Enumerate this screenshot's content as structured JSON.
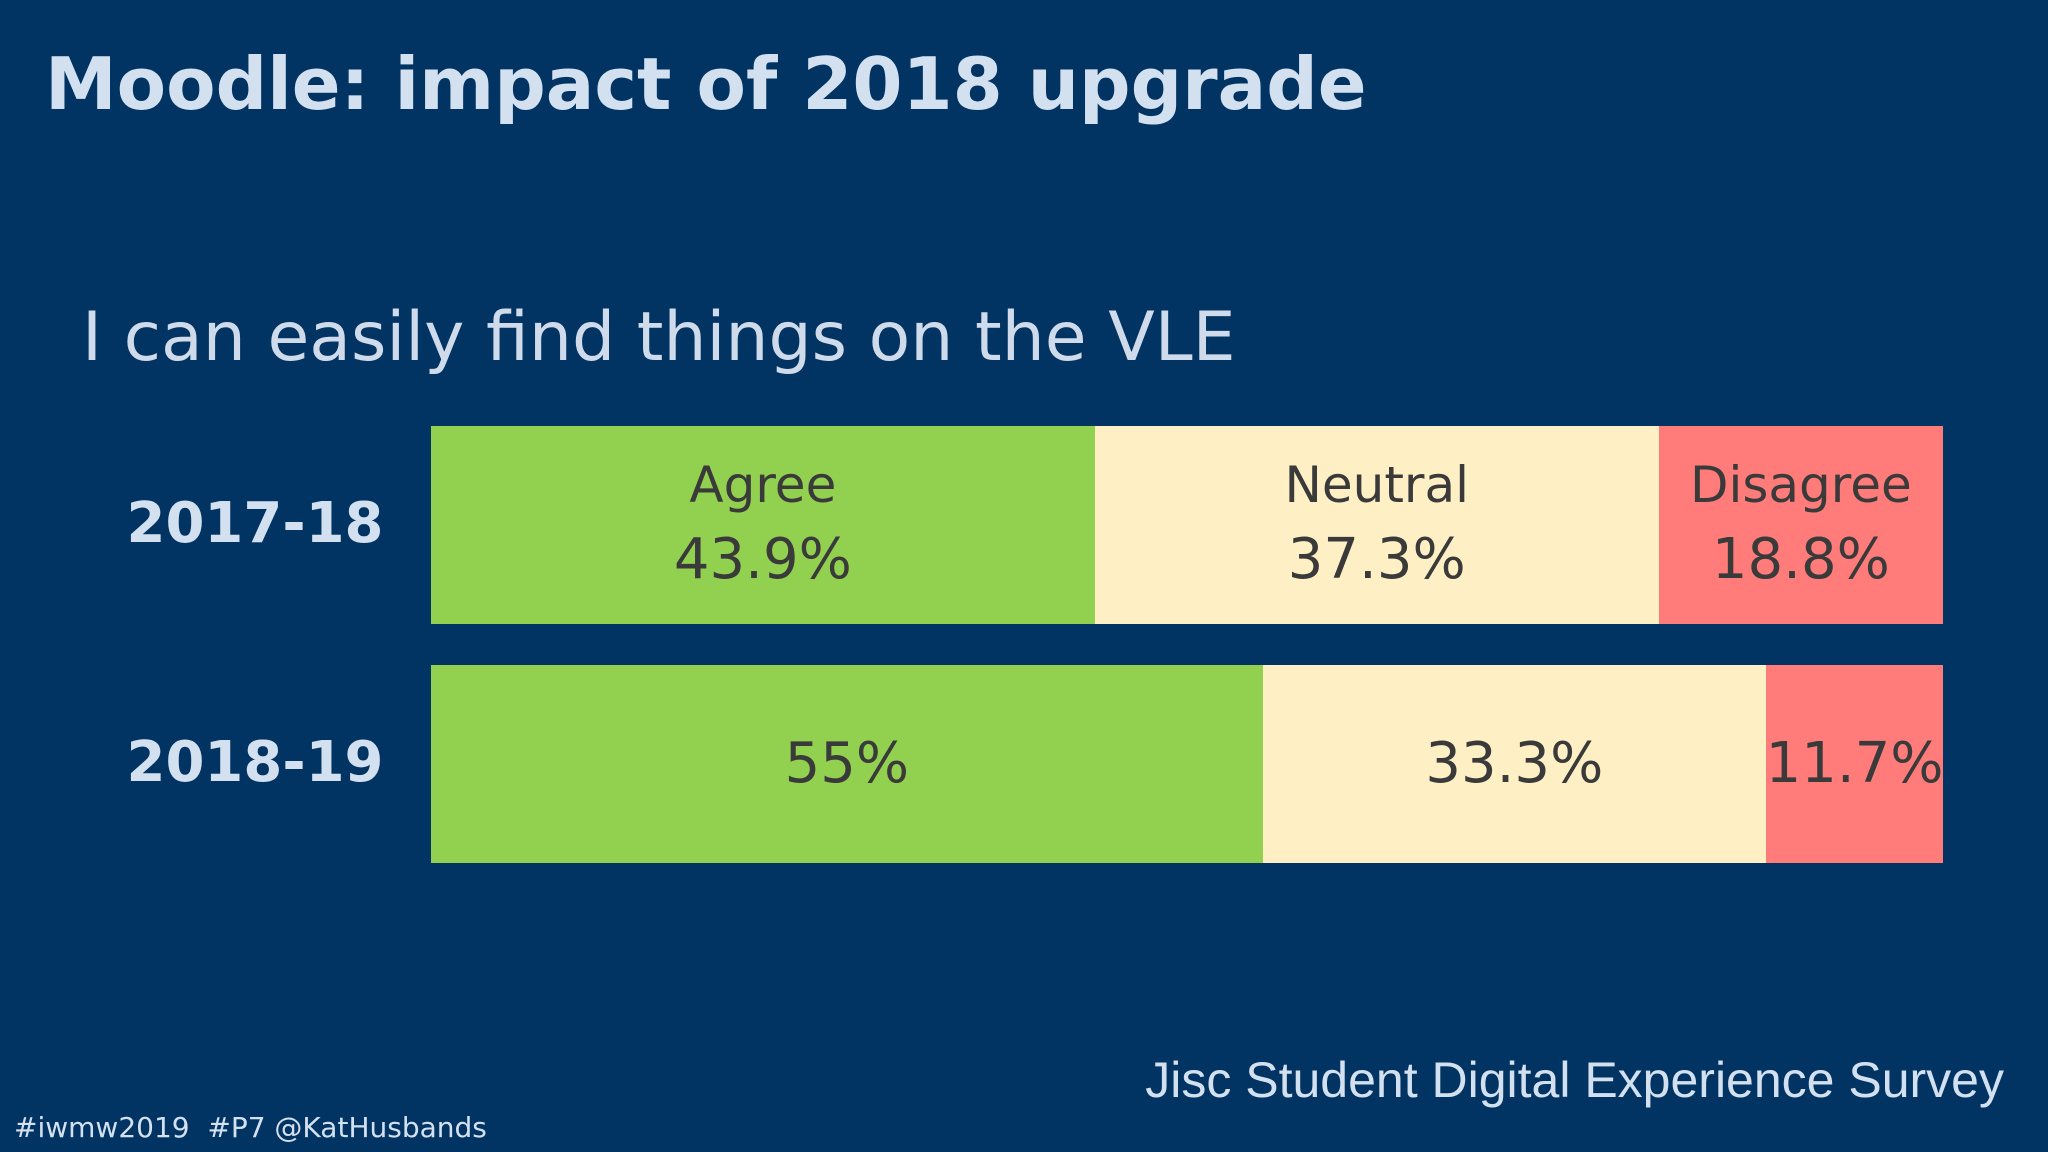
{
  "slide": {
    "title": "Moodle: impact of 2018 upgrade",
    "source": "Jisc Student Digital Experience Survey",
    "footer": "#iwmw2019  #P7 @KatHusbands"
  },
  "chart_data": {
    "type": "bar",
    "orientation": "horizontal",
    "stacked": true,
    "normalized": true,
    "title": "I can easily find things on the VLE",
    "categories": [
      "2017-18",
      "2018-19"
    ],
    "series": [
      {
        "name": "Agree",
        "color": "#92d050",
        "values": [
          43.9,
          55
        ],
        "labels": [
          "43.9%",
          "55%"
        ]
      },
      {
        "name": "Neutral",
        "color": "#fef0c4",
        "values": [
          37.3,
          33.3
        ],
        "labels": [
          "37.3%",
          "33.3%"
        ]
      },
      {
        "name": "Disagree",
        "color": "#ff7c7a",
        "values": [
          18.8,
          11.7
        ],
        "labels": [
          "18.8%",
          "11.7%"
        ]
      }
    ],
    "series_names_shown_in_row": 0,
    "xlim": [
      0,
      100
    ],
    "grid": false,
    "legend": "none"
  }
}
